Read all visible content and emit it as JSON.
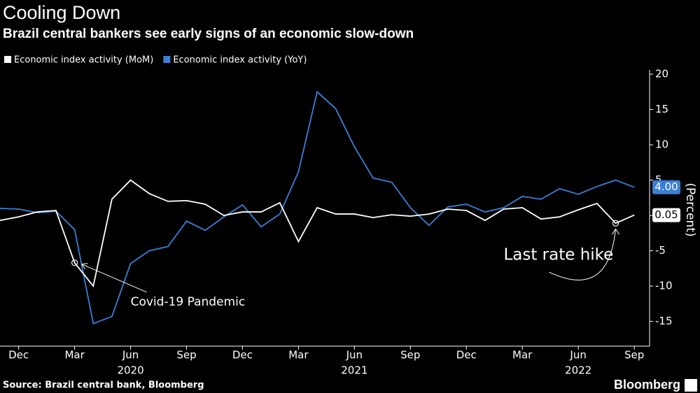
{
  "chart_data": {
    "type": "line",
    "title": "Cooling Down",
    "subtitle": "Brazil central bankers see early signs of an economic slow-down",
    "y_label": "(Percent)",
    "source": "Source: Brazil central bank, Bloomberg",
    "brand": "Bloomberg",
    "x": [
      "2019-11",
      "2019-12",
      "2020-01",
      "2020-02",
      "2020-03",
      "2020-04",
      "2020-05",
      "2020-06",
      "2020-07",
      "2020-08",
      "2020-09",
      "2020-10",
      "2020-11",
      "2020-12",
      "2021-01",
      "2021-02",
      "2021-03",
      "2021-04",
      "2021-05",
      "2021-06",
      "2021-07",
      "2021-08",
      "2021-09",
      "2021-10",
      "2021-11",
      "2021-12",
      "2022-01",
      "2022-02",
      "2022-03",
      "2022-04",
      "2022-05",
      "2022-06",
      "2022-07",
      "2022-08",
      "2022-09"
    ],
    "xticks": [
      {
        "value": "2019-12",
        "label": "Dec"
      },
      {
        "value": "2020-03",
        "label": "Mar"
      },
      {
        "value": "2020-06",
        "label": "Jun"
      },
      {
        "value": "2020-09",
        "label": "Sep"
      },
      {
        "value": "2020-12",
        "label": "Dec"
      },
      {
        "value": "2021-03",
        "label": "Mar"
      },
      {
        "value": "2021-06",
        "label": "Jun"
      },
      {
        "value": "2021-09",
        "label": "Sep"
      },
      {
        "value": "2021-12",
        "label": "Dec"
      },
      {
        "value": "2022-03",
        "label": "Mar"
      },
      {
        "value": "2022-06",
        "label": "Jun"
      },
      {
        "value": "2022-09",
        "label": "Sep"
      }
    ],
    "year_labels": [
      {
        "value": "2020-06",
        "label": "2020"
      },
      {
        "value": "2021-06",
        "label": "2021"
      },
      {
        "value": "2022-06",
        "label": "2022"
      }
    ],
    "series": [
      {
        "name": "Economic index activity (MoM)",
        "color": "#ffffff",
        "last_value_label": "0.05",
        "values": [
          -0.7,
          -0.2,
          0.5,
          0.7,
          -6.7,
          -10.0,
          2.3,
          5.0,
          3.1,
          2.0,
          2.1,
          1.6,
          0.0,
          0.5,
          0.5,
          1.8,
          -3.7,
          1.1,
          0.2,
          0.2,
          -0.3,
          0.1,
          -0.1,
          0.2,
          0.9,
          0.7,
          -0.7,
          0.9,
          1.1,
          -0.5,
          -0.2,
          0.8,
          1.7,
          -1.1,
          0.05
        ]
      },
      {
        "name": "Economic index activity (YoY)",
        "color": "#3a7fd5",
        "last_value_label": "4.00",
        "values": [
          1.0,
          0.9,
          0.4,
          0.6,
          -2.0,
          -15.3,
          -14.3,
          -6.8,
          -5.0,
          -4.4,
          -0.8,
          -2.1,
          -0.2,
          1.5,
          -1.6,
          0.2,
          6.2,
          17.5,
          15.1,
          9.7,
          5.3,
          4.7,
          1.1,
          -1.4,
          1.2,
          1.6,
          0.5,
          1.1,
          2.7,
          2.3,
          3.8,
          3.0,
          4.1,
          5.0,
          4.0
        ]
      }
    ],
    "annotations": [
      {
        "text": "Covid-19 Pandemic",
        "x": "2020-03",
        "series": 0
      },
      {
        "text": "Last rate hike",
        "x": "2022-08",
        "series": 0
      }
    ],
    "ylim": [
      -18.5,
      20.6
    ],
    "yticks": [
      20,
      15,
      10,
      5,
      0,
      -5,
      -10,
      -15
    ]
  }
}
